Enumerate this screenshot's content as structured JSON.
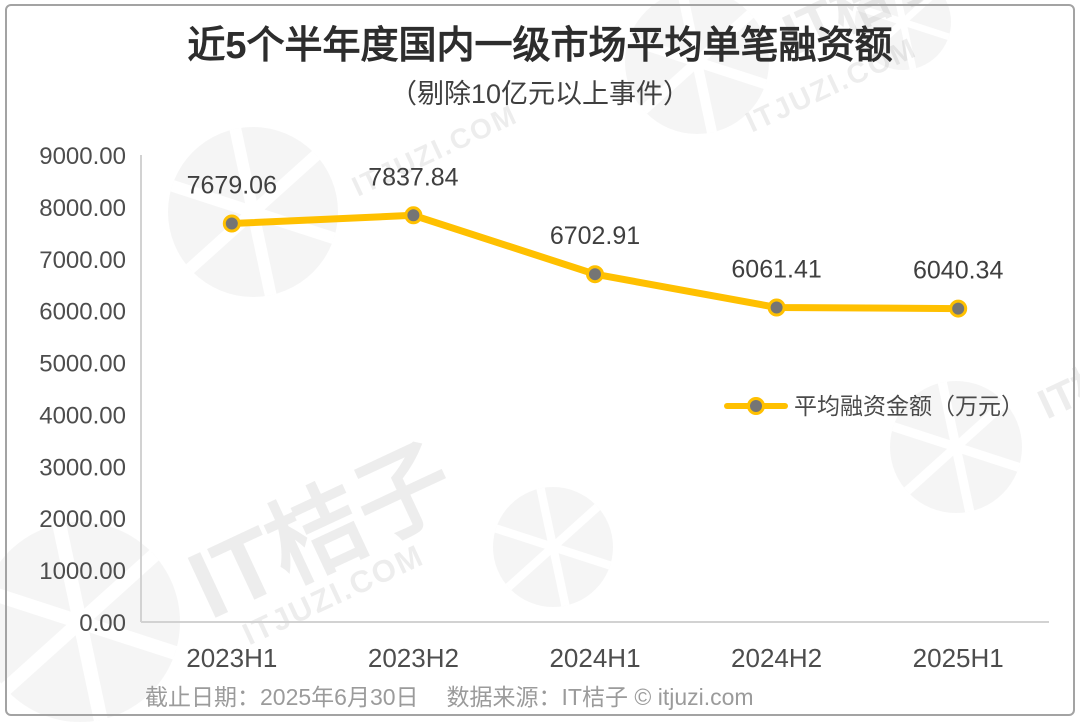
{
  "frame": {
    "border_color": "#A3A3A3"
  },
  "header": {
    "title": "近5个半年度国内一级市场平均单笔融资额",
    "subtitle": "（剔除10亿元以上事件）"
  },
  "legend": {
    "label": "平均融资金额（万元）"
  },
  "footer": {
    "date_note": "截止日期：2025年6月30日",
    "source_note": "数据来源：IT桔子 © itjuzi.com"
  },
  "watermark": {
    "brand": "IT桔子",
    "domain": "ITJUZI.COM",
    "logo": "itjuzi-pinwheel-logo",
    "color": "#EDEDED"
  },
  "chart_data": {
    "type": "line",
    "title": "近5个半年度国内一级市场平均单笔融资额",
    "subtitle": "（剔除10亿元以上事件）",
    "categories": [
      "2023H1",
      "2023H2",
      "2024H1",
      "2024H2",
      "2025H1"
    ],
    "series": [
      {
        "name": "平均融资金额（万元）",
        "values": [
          7679.06,
          7837.84,
          6702.91,
          6061.41,
          6040.34
        ]
      }
    ],
    "data_labels": [
      "7679.06",
      "7837.84",
      "6702.91",
      "6061.41",
      "6040.34"
    ],
    "xlabel": "",
    "ylabel": "",
    "ylim": [
      0,
      9000
    ],
    "y_tick_step": 1000,
    "y_tick_labels": [
      "0.00",
      "1000.00",
      "2000.00",
      "3000.00",
      "4000.00",
      "5000.00",
      "6000.00",
      "7000.00",
      "8000.00",
      "9000.00"
    ],
    "grid": false,
    "legend_position": "middle-right",
    "line_color": "#FFC000",
    "marker_color": "#757575",
    "marker_ring_color": "#FFC000"
  }
}
